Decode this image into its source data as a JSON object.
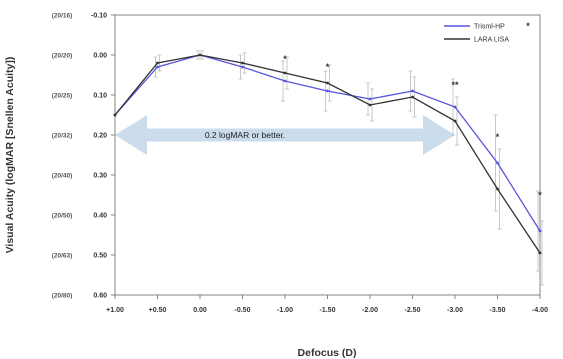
{
  "chart_data": {
    "type": "line",
    "title": "",
    "xlabel": "Defocus (D)",
    "ylabel": "Visual Acuity (logMAR [Snellen Acuity])",
    "x": [
      1.0,
      0.5,
      0.0,
      -0.5,
      -1.0,
      -1.5,
      -2.0,
      -2.5,
      -3.0,
      -3.5,
      -4.0
    ],
    "xtick_labels": [
      "+1.00",
      "+0.50",
      "0.00",
      "-0.50",
      "-1.00",
      "-1.50",
      "-2.00",
      "-2.50",
      "-3.00",
      "-3.50",
      "-4.00"
    ],
    "ylim": [
      -0.1,
      0.6
    ],
    "y_inverted": true,
    "ytick_values": [
      -0.1,
      0.0,
      0.1,
      0.2,
      0.3,
      0.4,
      0.5,
      0.6
    ],
    "ytick_labels": [
      "-0.10",
      "0.00",
      "0.10",
      "0.20",
      "0.30",
      "0.40",
      "0.50",
      "0.60"
    ],
    "snellen_labels": [
      "(20/16)",
      "(20/20)",
      "(20/25)",
      "(20/32)",
      "(20/40)",
      "(20/50)",
      "(20/63)",
      "(20/80)"
    ],
    "legend_position": "top-right",
    "series": [
      {
        "name": "Trisml-HP",
        "color": "#5555dd",
        "values": [
          0.15,
          0.03,
          0.0,
          0.03,
          0.065,
          0.09,
          0.11,
          0.09,
          0.13,
          0.27,
          0.44
        ],
        "error": [
          0.0,
          0.025,
          0.01,
          0.03,
          0.05,
          0.05,
          0.04,
          0.05,
          0.07,
          0.12,
          0.1
        ]
      },
      {
        "name": "LARA LISA",
        "color": "#333333",
        "values": [
          0.15,
          0.02,
          0.0,
          0.02,
          0.045,
          0.07,
          0.125,
          0.105,
          0.165,
          0.335,
          0.495
        ],
        "error": [
          0.0,
          0.02,
          0.01,
          0.025,
          0.04,
          0.045,
          0.04,
          0.05,
          0.06,
          0.1,
          0.08
        ]
      }
    ],
    "significance_markers": [
      {
        "x": -1.0,
        "y": 0.01,
        "label": "*"
      },
      {
        "x": -1.5,
        "y": 0.03,
        "label": "*"
      },
      {
        "x": -3.0,
        "y": 0.075,
        "label": "**"
      },
      {
        "x": -3.5,
        "y": 0.205,
        "label": "*"
      },
      {
        "x": -4.0,
        "y": 0.35,
        "label": "*"
      }
    ],
    "annotation": {
      "text": "0.2 logMAR or better.",
      "x_start": 1.0,
      "x_end": -3.0,
      "y": 0.2,
      "arrow_color": "#c5d8ea"
    },
    "legend_marker": "*"
  }
}
